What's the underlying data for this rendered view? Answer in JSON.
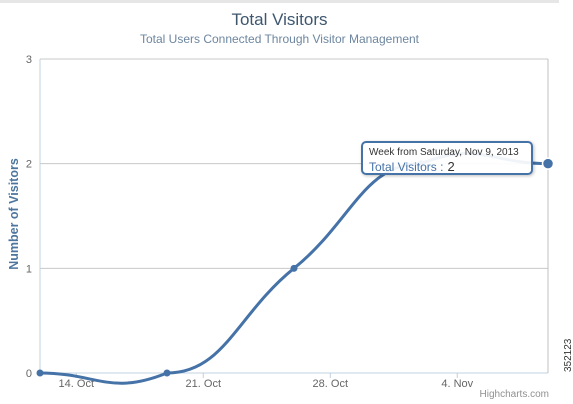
{
  "chart_data": {
    "type": "line",
    "title": "Total Visitors",
    "subtitle": "Total Users Connected Through Visitor Management",
    "ylabel": "Number of Visitors",
    "xlabel": "",
    "ylim": [
      0,
      3
    ],
    "y_ticks": [
      "0",
      "1",
      "2",
      "3"
    ],
    "x_ticks": [
      {
        "label": "14. Oct",
        "date": "2013-10-14"
      },
      {
        "label": "21. Oct",
        "date": "2013-10-21"
      },
      {
        "label": "28. Oct",
        "date": "2013-10-28"
      },
      {
        "label": "4. Nov",
        "date": "2013-11-04"
      }
    ],
    "xlim": [
      "2013-10-12",
      "2013-11-09"
    ],
    "grid": true,
    "legend": "none",
    "series": [
      {
        "name": "Total Visitors",
        "color": "#4572a7",
        "points": [
          {
            "x": "2013-10-12",
            "y": 0
          },
          {
            "x": "2013-10-19",
            "y": 0
          },
          {
            "x": "2013-10-26",
            "y": 1
          },
          {
            "x": "2013-11-02",
            "y": 2
          },
          {
            "x": "2013-11-09",
            "y": 2
          }
        ]
      }
    ],
    "tooltip": {
      "header": "Week from Saturday, Nov 9, 2013",
      "series_name": "Total Visitors :",
      "value": "2"
    }
  },
  "credits": "Highcharts.com",
  "image_id_text": "352123"
}
